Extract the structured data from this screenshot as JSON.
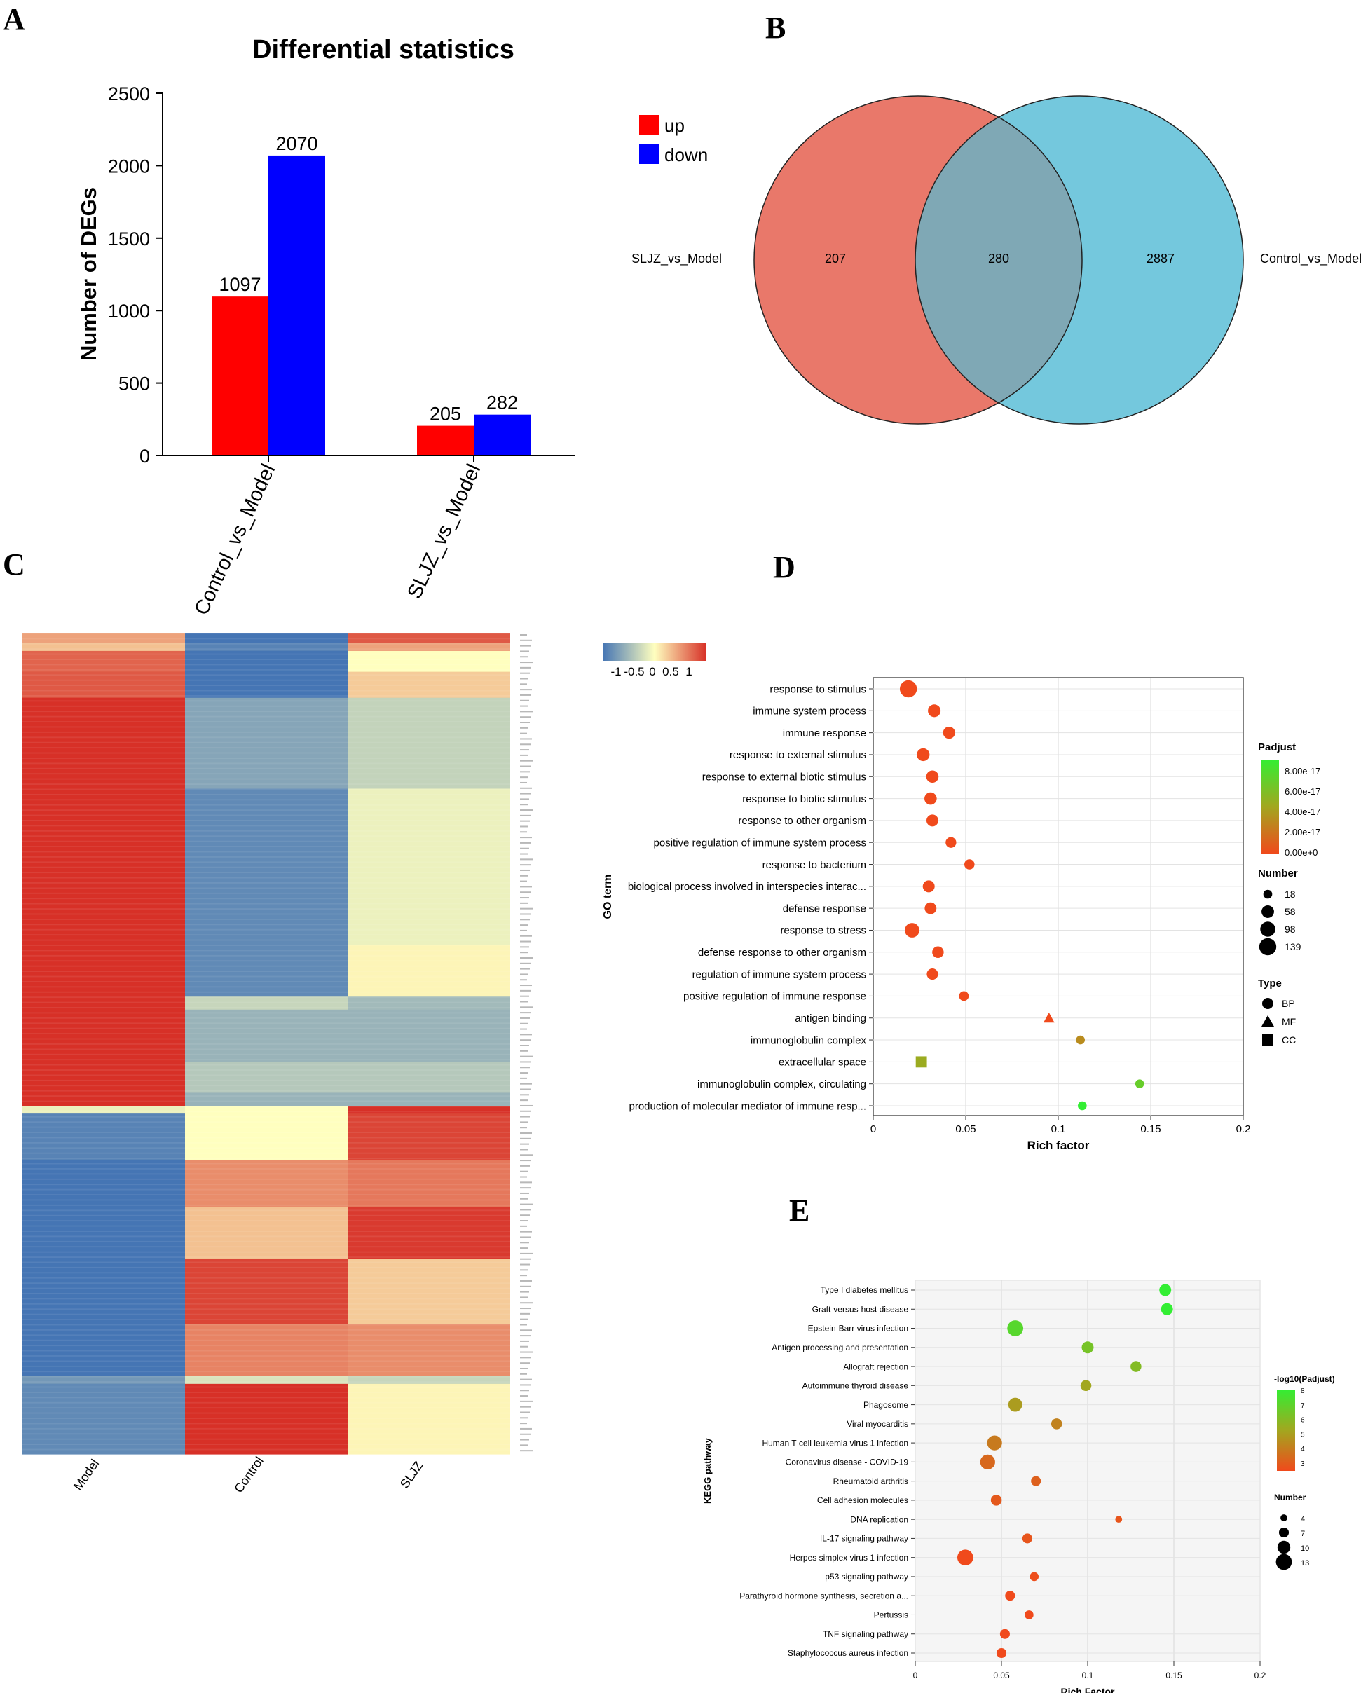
{
  "panels": {
    "a": "A",
    "b": "B",
    "c": "C",
    "d": "D",
    "e": "E"
  },
  "chart_data": [
    {
      "type": "bar",
      "title": "Differential statistics",
      "ylabel": "Number of DEGs",
      "xlabel": "",
      "categories": [
        "Control_vs_Model",
        "SLJZ_vs_Model"
      ],
      "series": [
        {
          "name": "up",
          "color": "#ff0000",
          "values": [
            1097,
            205
          ]
        },
        {
          "name": "down",
          "color": "#0000ff",
          "values": [
            2070,
            282
          ]
        }
      ],
      "ylim": [
        0,
        2500
      ],
      "yticks": [
        0,
        500,
        1000,
        1500,
        2000,
        2500
      ],
      "legend": "top-right",
      "grid": false
    },
    {
      "type": "venn",
      "sets": [
        {
          "name": "SLJZ_vs_Model",
          "only": 207,
          "color": "#e9786a"
        },
        {
          "name": "Control_vs_Model",
          "only": 2887,
          "color": "#74c8dd"
        }
      ],
      "intersection": 280
    },
    {
      "type": "heatmap",
      "columns": [
        "Model",
        "Control",
        "SLJZ"
      ],
      "scale_ticks": [
        "-1",
        "-0.5",
        "0",
        "0.5",
        "1"
      ],
      "colormap": [
        "#4575b4",
        "#ffffbf",
        "#d73027"
      ],
      "blocks": [
        {
          "rows": 4,
          "values": [
            0.45,
            -1.0,
            0.8
          ]
        },
        {
          "rows": 3,
          "values": [
            0.3,
            -0.9,
            0.45
          ]
        },
        {
          "rows": 8,
          "values": [
            0.75,
            -1.0,
            0.0
          ]
        },
        {
          "rows": 10,
          "values": [
            0.8,
            -1.0,
            0.25
          ]
        },
        {
          "rows": 35,
          "values": [
            1.0,
            -0.65,
            -0.32
          ]
        },
        {
          "rows": 60,
          "values": [
            1.0,
            -0.85,
            -0.1
          ]
        },
        {
          "rows": 20,
          "values": [
            1.0,
            -0.85,
            0.05
          ]
        },
        {
          "rows": 5,
          "values": [
            1.0,
            -0.3,
            -0.5
          ]
        },
        {
          "rows": 20,
          "values": [
            1.0,
            -0.55,
            -0.55
          ]
        },
        {
          "rows": 12,
          "values": [
            1.0,
            -0.4,
            -0.4
          ]
        },
        {
          "rows": 5,
          "values": [
            1.0,
            -0.55,
            -0.55
          ]
        },
        {
          "rows": 3,
          "values": [
            -0.1,
            0.0,
            1.0
          ]
        },
        {
          "rows": 18,
          "values": [
            -0.9,
            0.0,
            0.9
          ]
        },
        {
          "rows": 18,
          "values": [
            -1.0,
            0.55,
            0.65
          ]
        },
        {
          "rows": 20,
          "values": [
            -1.0,
            0.3,
            0.95
          ]
        },
        {
          "rows": 25,
          "values": [
            -1.0,
            0.9,
            0.25
          ]
        },
        {
          "rows": 20,
          "values": [
            -1.0,
            0.6,
            0.55
          ]
        },
        {
          "rows": 3,
          "values": [
            -0.75,
            -0.2,
            -0.3
          ]
        },
        {
          "rows": 27,
          "values": [
            -0.85,
            1.0,
            0.05
          ]
        }
      ]
    },
    {
      "type": "scatter",
      "title": "",
      "xlabel": "Rich factor",
      "ylabel": "GO term",
      "xlim": [
        0,
        0.2
      ],
      "xticks": [
        "0",
        "0.05",
        "0.1",
        "0.15",
        "0.2"
      ],
      "color_legend_title": "Padjust",
      "color_legend_ticks": [
        "8.00e-17",
        "6.00e-17",
        "4.00e-17",
        "2.00e-17",
        "0.00e+0"
      ],
      "size_legend_title": "Number",
      "size_legend": [
        18,
        58,
        98,
        139
      ],
      "type_legend_title": "Type",
      "type_legend": [
        "BP",
        "MF",
        "CC"
      ],
      "points": [
        {
          "term": "response to stimulus",
          "x": 0.019,
          "number": 139,
          "padj": 0.0,
          "shape": "BP"
        },
        {
          "term": "immune system process",
          "x": 0.033,
          "number": 60,
          "padj": 0.0,
          "shape": "BP"
        },
        {
          "term": "immune response",
          "x": 0.041,
          "number": 52,
          "padj": 0.0,
          "shape": "BP"
        },
        {
          "term": "response to external stimulus",
          "x": 0.027,
          "number": 62,
          "padj": 0.0,
          "shape": "BP"
        },
        {
          "term": "response to external biotic stimulus",
          "x": 0.032,
          "number": 55,
          "padj": 0.0,
          "shape": "BP"
        },
        {
          "term": "response to biotic stimulus",
          "x": 0.031,
          "number": 55,
          "padj": 0.0,
          "shape": "BP"
        },
        {
          "term": "response to other organism",
          "x": 0.032,
          "number": 50,
          "padj": 0.0,
          "shape": "BP"
        },
        {
          "term": "positive regulation of immune system process",
          "x": 0.042,
          "number": 35,
          "padj": 0.0,
          "shape": "BP"
        },
        {
          "term": "response to bacterium",
          "x": 0.052,
          "number": 30,
          "padj": 0.0,
          "shape": "BP"
        },
        {
          "term": "biological process involved in interspecies interac...",
          "x": 0.03,
          "number": 50,
          "padj": 0.0,
          "shape": "BP"
        },
        {
          "term": "defense response",
          "x": 0.031,
          "number": 48,
          "padj": 0.0,
          "shape": "BP"
        },
        {
          "term": "response to stress",
          "x": 0.021,
          "number": 90,
          "padj": 0.0,
          "shape": "BP"
        },
        {
          "term": "defense response to other organism",
          "x": 0.035,
          "number": 45,
          "padj": 0.0,
          "shape": "BP"
        },
        {
          "term": "regulation of immune system process",
          "x": 0.032,
          "number": 42,
          "padj": 0.0,
          "shape": "BP"
        },
        {
          "term": "positive regulation of immune response",
          "x": 0.049,
          "number": 25,
          "padj": 0.0,
          "shape": "BP"
        },
        {
          "term": "antigen binding",
          "x": 0.095,
          "number": 20,
          "padj": 0.0,
          "shape": "MF"
        },
        {
          "term": "immunoglobulin complex",
          "x": 0.112,
          "number": 18,
          "padj": 3e-17,
          "shape": "BP"
        },
        {
          "term": "extracellular space",
          "x": 0.026,
          "number": 40,
          "padj": 4.5e-17,
          "shape": "CC"
        },
        {
          "term": "immunoglobulin complex, circulating",
          "x": 0.144,
          "number": 18,
          "padj": 6.5e-17,
          "shape": "BP"
        },
        {
          "term": "production of molecular mediator of immune resp...",
          "x": 0.113,
          "number": 18,
          "padj": 8.5e-17,
          "shape": "BP"
        }
      ]
    },
    {
      "type": "scatter",
      "title": "",
      "xlabel": "Rich Factor",
      "ylabel": "KEGG pathway",
      "xlim": [
        0,
        0.2
      ],
      "xticks": [
        "0",
        "0.05",
        "0.1",
        "0.15",
        "0.2"
      ],
      "color_legend_title": "-log10(Padjust)",
      "color_legend_ticks": [
        "8",
        "7",
        "6",
        "5",
        "4",
        "3"
      ],
      "size_legend_title": "Number",
      "size_legend": [
        4,
        7,
        10,
        13
      ],
      "points": [
        {
          "term": "Type I diabetes mellitus",
          "x": 0.145,
          "number": 9,
          "nlogp": 8.0
        },
        {
          "term": "Graft-versus-host disease",
          "x": 0.146,
          "number": 9,
          "nlogp": 8.0
        },
        {
          "term": "Epstein-Barr virus infection",
          "x": 0.058,
          "number": 13,
          "nlogp": 7.2
        },
        {
          "term": "Antigen processing and presentation",
          "x": 0.1,
          "number": 9,
          "nlogp": 6.5
        },
        {
          "term": "Allograft rejection",
          "x": 0.128,
          "number": 8,
          "nlogp": 6.2
        },
        {
          "term": "Autoimmune thyroid disease",
          "x": 0.099,
          "number": 8,
          "nlogp": 5.5
        },
        {
          "term": "Phagosome",
          "x": 0.058,
          "number": 11,
          "nlogp": 5.2
        },
        {
          "term": "Viral myocarditis",
          "x": 0.082,
          "number": 8,
          "nlogp": 4.5
        },
        {
          "term": "Human T-cell leukemia virus 1 infection",
          "x": 0.046,
          "number": 12,
          "nlogp": 4.3
        },
        {
          "term": "Coronavirus disease - COVID-19",
          "x": 0.042,
          "number": 12,
          "nlogp": 3.8
        },
        {
          "term": "Rheumatoid arthritis",
          "x": 0.07,
          "number": 7,
          "nlogp": 3.6
        },
        {
          "term": "Cell adhesion molecules",
          "x": 0.047,
          "number": 8,
          "nlogp": 3.4
        },
        {
          "term": "DNA replication",
          "x": 0.118,
          "number": 4,
          "nlogp": 3.3
        },
        {
          "term": "IL-17 signaling pathway",
          "x": 0.065,
          "number": 7,
          "nlogp": 3.3
        },
        {
          "term": "Herpes simplex virus 1 infection",
          "x": 0.029,
          "number": 13,
          "nlogp": 3.0
        },
        {
          "term": "p53 signaling pathway",
          "x": 0.069,
          "number": 6,
          "nlogp": 3.1
        },
        {
          "term": "Parathyroid hormone synthesis, secretion a...",
          "x": 0.055,
          "number": 7,
          "nlogp": 3.0
        },
        {
          "term": "Pertussis",
          "x": 0.066,
          "number": 6,
          "nlogp": 3.0
        },
        {
          "term": "TNF signaling pathway",
          "x": 0.052,
          "number": 7,
          "nlogp": 3.0
        },
        {
          "term": "Staphylococcus aureus infection",
          "x": 0.05,
          "number": 7,
          "nlogp": 3.0
        }
      ]
    }
  ]
}
